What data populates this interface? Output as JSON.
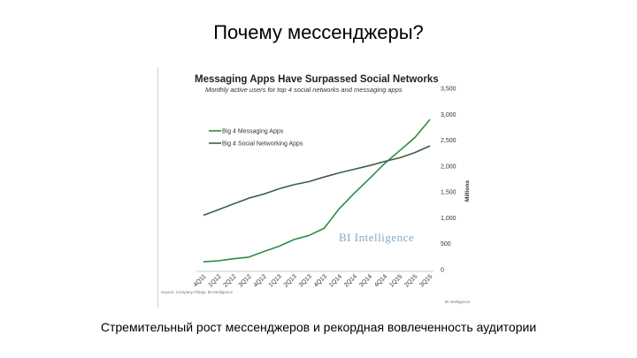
{
  "slide": {
    "title": "Почему мессенджеры?",
    "caption": "Стремительный рост мессенджеров и рекордная вовлеченность аудитории"
  },
  "chart_data": {
    "type": "line",
    "title": "Messaging Apps Have Surpassed Social Networks",
    "subtitle": "Monthly active users for top 4 social networks and messaging apps",
    "ylabel": "Millions",
    "ylim": [
      0,
      3500
    ],
    "yticks": [
      "0",
      "500",
      "1,000",
      "1,500",
      "2,000",
      "2,500",
      "3,000",
      "3,500"
    ],
    "categories": [
      "4Q11",
      "1Q12",
      "2Q12",
      "3Q12",
      "4Q12",
      "1Q13",
      "2Q13",
      "3Q13",
      "4Q13",
      "1Q14",
      "2Q14",
      "3Q14",
      "4Q14",
      "1Q15",
      "2Q15",
      "3Q15"
    ],
    "legend_position": "upper-left",
    "watermark": "BI Intelligence",
    "source": "Source: Company Filings, BI Intelligence",
    "footer_right": "BI Intelligence",
    "colors": {
      "messaging": "#2e8b3e",
      "social": "#3d5e43"
    },
    "series": [
      {
        "name": "Big 4 Messaging Apps",
        "key": "messaging",
        "values": [
          150,
          170,
          210,
          240,
          350,
          450,
          580,
          660,
          800,
          1180,
          1480,
          1760,
          2050,
          2300,
          2550,
          2900
        ]
      },
      {
        "name": "Big 4 Social Networking Apps",
        "key": "social",
        "values": [
          1050,
          1160,
          1270,
          1380,
          1460,
          1560,
          1640,
          1700,
          1790,
          1870,
          1940,
          2010,
          2090,
          2160,
          2260,
          2390
        ]
      }
    ]
  }
}
